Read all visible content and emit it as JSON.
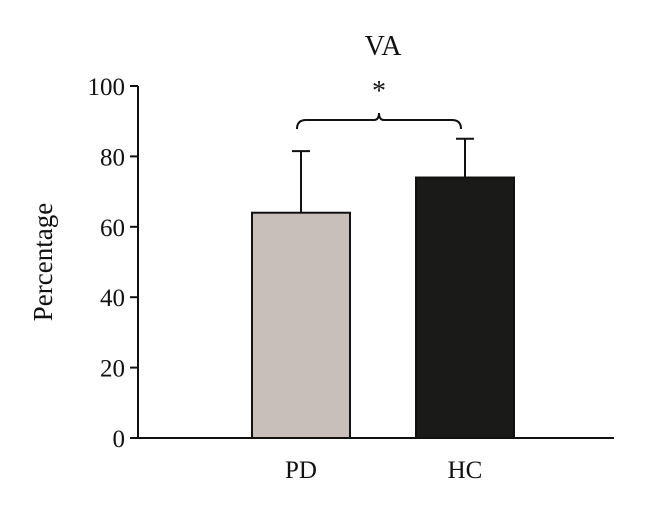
{
  "chart_data": {
    "type": "bar",
    "title": "VA",
    "xlabel": "",
    "ylabel": "Percentage",
    "categories": [
      "PD",
      "HC"
    ],
    "values": [
      64,
      74
    ],
    "error_upper": [
      81.5,
      85
    ],
    "bar_colors": [
      "#c8bfba",
      "#1a1a18"
    ],
    "ylim": [
      0,
      100
    ],
    "yticks": [
      0,
      20,
      40,
      60,
      80,
      100
    ],
    "significance": {
      "between": [
        "PD",
        "HC"
      ],
      "label": "*"
    },
    "grid": false,
    "legend": "none"
  }
}
